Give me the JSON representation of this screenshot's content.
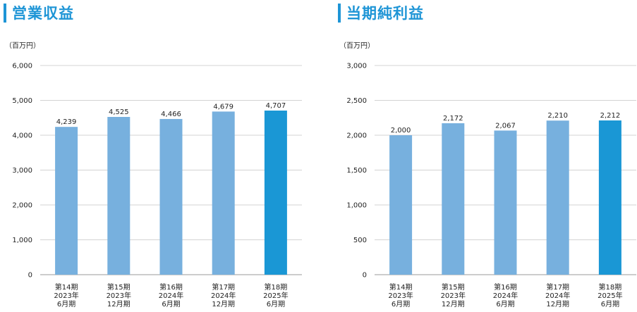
{
  "colors": {
    "accent": "#1e95d6",
    "bar": "#77b0de",
    "highlight": "#1a97d5",
    "grid": "#d3d3d3"
  },
  "chart_data": [
    {
      "type": "bar",
      "title": "営業収益",
      "unit_label": "（百万円）",
      "categories": [
        "第14期\n2023年\n6月期",
        "第15期\n2023年\n12月期",
        "第16期\n2024年\n6月期",
        "第17期\n2024年\n12月期",
        "第18期\n2025年\n6月期"
      ],
      "values": [
        4239,
        4525,
        4466,
        4679,
        4707
      ],
      "data_labels": [
        "4,239",
        "4,525",
        "4,466",
        "4,679",
        "4,707"
      ],
      "y_ticks": [
        "0",
        "1,000",
        "2,000",
        "3,000",
        "4,000",
        "5,000",
        "6,000"
      ],
      "ylim": [
        0,
        6000
      ],
      "grid": true,
      "highlight_index": 4
    },
    {
      "type": "bar",
      "title": "当期純利益",
      "unit_label": "（百万円）",
      "categories": [
        "第14期\n2023年\n6月期",
        "第15期\n2023年\n12月期",
        "第16期\n2024年\n6月期",
        "第17期\n2024年\n12月期",
        "第18期\n2025年\n6月期"
      ],
      "values": [
        2000,
        2172,
        2067,
        2210,
        2212
      ],
      "data_labels": [
        "2,000",
        "2,172",
        "2,067",
        "2,210",
        "2,212"
      ],
      "y_ticks": [
        "0",
        "500",
        "1,000",
        "1,500",
        "2,000",
        "2,500",
        "3,000"
      ],
      "ylim": [
        0,
        3000
      ],
      "grid": true,
      "highlight_index": 4
    }
  ]
}
